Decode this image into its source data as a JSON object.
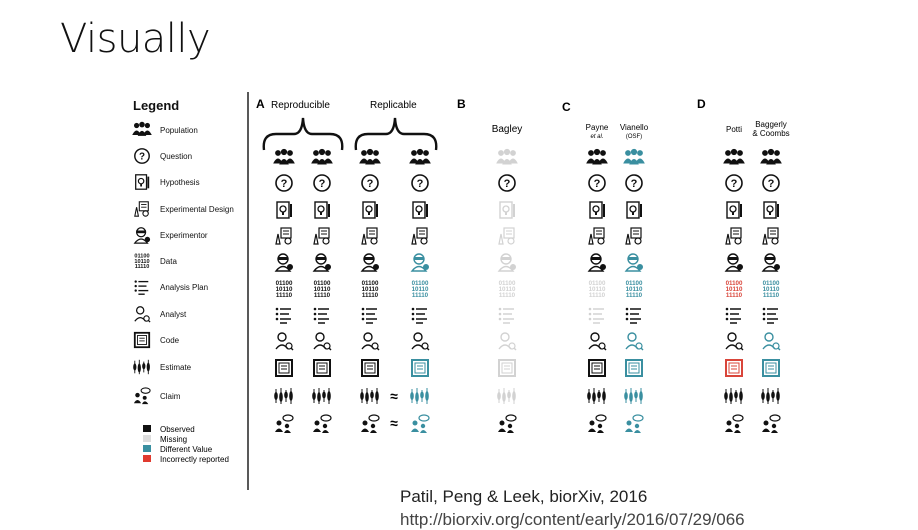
{
  "slide": {
    "title": "Visually",
    "citation": "Patil, Peng & Leek, biorXiv, 2016",
    "url_partial": "http://biorxiv.org/content/early/2016/07/29/066"
  },
  "figure": {
    "legend_title": "Legend",
    "legend_items": [
      {
        "icon": "population-icon",
        "label": "Population"
      },
      {
        "icon": "question-icon",
        "label": "Question"
      },
      {
        "icon": "hypothesis-icon",
        "label": "Hypothesis"
      },
      {
        "icon": "experimental-design-icon",
        "label": "Experimental Design"
      },
      {
        "icon": "experimentor-icon",
        "label": "Experimentor"
      },
      {
        "icon": "data-icon",
        "label": "Data"
      },
      {
        "icon": "analysis-plan-icon",
        "label": "Analysis Plan"
      },
      {
        "icon": "analyst-icon",
        "label": "Analyst"
      },
      {
        "icon": "code-icon",
        "label": "Code"
      },
      {
        "icon": "estimate-icon",
        "label": "Estimate"
      },
      {
        "icon": "claim-icon",
        "label": "Claim"
      }
    ],
    "color_key": [
      {
        "label": "Observed",
        "color": "#111111"
      },
      {
        "label": "Missing",
        "color": "#dddddd"
      },
      {
        "label": "Different Value",
        "color": "#3a8fa0"
      },
      {
        "label": "Incorrectly reported",
        "color": "#e03a2f"
      }
    ],
    "panel_a": {
      "letter": "A",
      "reproducible": "Reproducible",
      "replicable": "Replicable",
      "approx": "≈"
    },
    "panel_b": {
      "letter": "B",
      "column": "Bagley"
    },
    "panel_c": {
      "letter": "C",
      "col1": "Payne",
      "col1_sub": "et al.",
      "col2": "Vianello",
      "col2_sub": "(OSF)"
    },
    "panel_d": {
      "letter": "D",
      "col1": "Potti",
      "col2_line1": "Baggerly",
      "col2_line2": "& Coombs"
    },
    "data_glyph": [
      "01100",
      "10110",
      "11110"
    ],
    "colors": {
      "observed": "#111111",
      "missing": "#d2d2d2",
      "different": "#3a8fa0",
      "incorrect": "#d9453a"
    },
    "columns": [
      {
        "id": "a1",
        "states": [
          "o",
          "o",
          "o",
          "o",
          "o",
          "o",
          "o",
          "o",
          "o",
          "o",
          "o"
        ]
      },
      {
        "id": "a2",
        "states": [
          "o",
          "o",
          "o",
          "o",
          "o",
          "o",
          "o",
          "o",
          "o",
          "o",
          "o"
        ]
      },
      {
        "id": "a3",
        "states": [
          "o",
          "o",
          "o",
          "o",
          "o",
          "o",
          "o",
          "o",
          "o",
          "o",
          "o"
        ]
      },
      {
        "id": "a4",
        "states": [
          "o",
          "o",
          "o",
          "o",
          "d",
          "d",
          "o",
          "o",
          "d",
          "d",
          "d"
        ]
      },
      {
        "id": "b1",
        "states": [
          "m",
          "o",
          "m",
          "m",
          "m",
          "m",
          "m",
          "m",
          "m",
          "m",
          "o"
        ]
      },
      {
        "id": "c1",
        "states": [
          "o",
          "o",
          "o",
          "o",
          "o",
          "m",
          "m",
          "o",
          "o",
          "o",
          "o"
        ]
      },
      {
        "id": "c2",
        "states": [
          "d",
          "o",
          "o",
          "o",
          "d",
          "d",
          "o",
          "d",
          "d",
          "d",
          "d"
        ]
      },
      {
        "id": "d1",
        "states": [
          "o",
          "o",
          "o",
          "o",
          "o",
          "i",
          "o",
          "o",
          "i",
          "o",
          "o"
        ]
      },
      {
        "id": "d2",
        "states": [
          "o",
          "o",
          "o",
          "o",
          "o",
          "d",
          "o",
          "d",
          "d",
          "o",
          "o"
        ]
      }
    ]
  }
}
